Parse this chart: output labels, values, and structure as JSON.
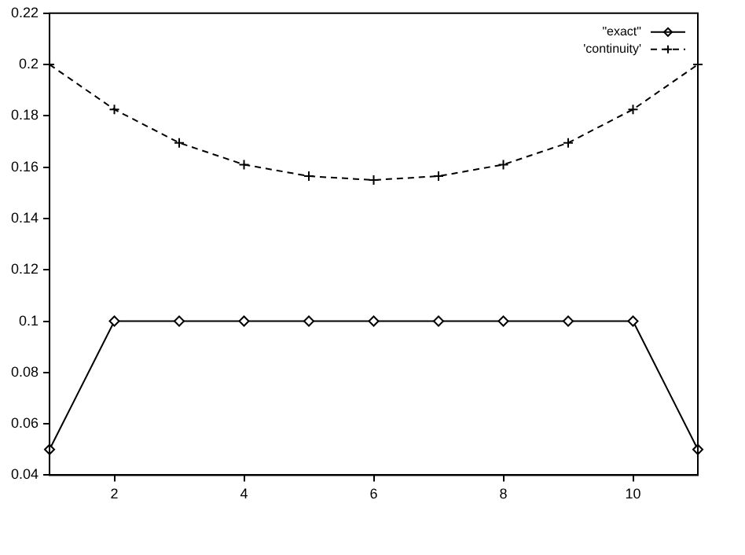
{
  "chart_data": {
    "type": "line",
    "x": [
      1,
      2,
      3,
      4,
      5,
      6,
      7,
      8,
      9,
      10,
      11
    ],
    "series": [
      {
        "name": "\"exact\"",
        "color": "#000000",
        "marker": "diamond",
        "line_style": "solid",
        "values": [
          0.05,
          0.1,
          0.1,
          0.1,
          0.1,
          0.1,
          0.1,
          0.1,
          0.1,
          0.1,
          0.05
        ]
      },
      {
        "name": "'continuity'",
        "color": "#000000",
        "marker": "cross",
        "line_style": "dashed",
        "values": [
          0.2,
          0.1825,
          0.1695,
          0.161,
          0.1565,
          0.155,
          0.1565,
          0.161,
          0.1695,
          0.1825,
          0.2
        ]
      }
    ],
    "xlim": [
      1,
      11
    ],
    "xticks": [
      2,
      4,
      6,
      8,
      10
    ],
    "ylim": [
      0.04,
      0.22
    ],
    "yticks": [
      0.04,
      0.06,
      0.08,
      0.1,
      0.12,
      0.14,
      0.16,
      0.18,
      0.2,
      0.22
    ],
    "grid": false,
    "legend": "top right"
  }
}
